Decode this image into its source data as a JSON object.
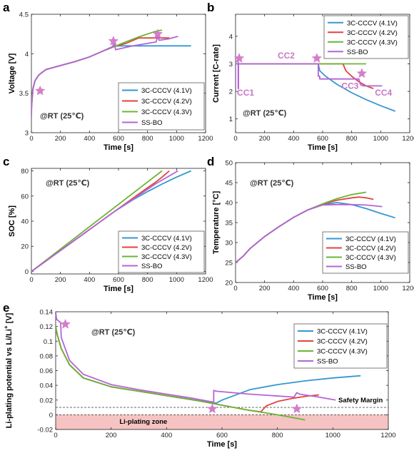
{
  "colors": {
    "blue": "#3497d3",
    "red": "#e2433f",
    "green": "#6bb535",
    "purple": "#b564d6",
    "star": "#d47ecb",
    "zone": "#f6c3c3",
    "cc_label": "#c678c8"
  },
  "legend_entries": [
    "3C-CCCV (4.1V)",
    "3C-CCCV (4.2V)",
    "3C-CCCV (4.3V)",
    "SS-BO"
  ],
  "chart_data": [
    {
      "panel": "a",
      "type": "line",
      "xlabel": "Time [s]",
      "ylabel": "Voltage [V]",
      "xlim": [
        0,
        1200
      ],
      "ylim": [
        3,
        4.5
      ],
      "xticks": [
        0,
        200,
        400,
        600,
        800,
        1000,
        1200
      ],
      "yticks": [
        3,
        3.5,
        4,
        4.5
      ],
      "ytick_labels": [
        "3",
        "3.5",
        "4",
        "4.5"
      ],
      "annotation": "@RT (25℃)",
      "legend": "bottom-right",
      "series": [
        {
          "name": "3C-CCCV (4.1V)",
          "color": "blue",
          "x": [
            0,
            10,
            25,
            50,
            100,
            200,
            300,
            400,
            500,
            570,
            700,
            900,
            1100
          ],
          "y": [
            3.3,
            3.55,
            3.66,
            3.73,
            3.8,
            3.85,
            3.9,
            3.96,
            4.04,
            4.1,
            4.1,
            4.1,
            4.1
          ]
        },
        {
          "name": "3C-CCCV (4.2V)",
          "color": "red",
          "x": [
            0,
            10,
            25,
            50,
            100,
            200,
            300,
            400,
            500,
            570,
            650,
            740,
            800,
            950
          ],
          "y": [
            3.3,
            3.55,
            3.66,
            3.73,
            3.8,
            3.85,
            3.9,
            3.96,
            4.04,
            4.09,
            4.13,
            4.2,
            4.2,
            4.2
          ]
        },
        {
          "name": "3C-CCCV (4.3V)",
          "color": "green",
          "x": [
            0,
            10,
            25,
            50,
            100,
            200,
            300,
            400,
            500,
            570,
            650,
            750,
            850,
            900
          ],
          "y": [
            3.3,
            3.55,
            3.66,
            3.73,
            3.8,
            3.85,
            3.9,
            3.96,
            4.04,
            4.09,
            4.15,
            4.22,
            4.28,
            4.3
          ]
        },
        {
          "name": "SS-BO",
          "color": "purple",
          "x": [
            0,
            2,
            10,
            25,
            50,
            100,
            200,
            300,
            400,
            500,
            560,
            570,
            580,
            600,
            700,
            860,
            870,
            880,
            950,
            1010
          ],
          "y": [
            3.2,
            3.38,
            3.55,
            3.66,
            3.73,
            3.8,
            3.85,
            3.9,
            3.96,
            4.04,
            4.09,
            4.16,
            4.05,
            4.06,
            4.1,
            4.15,
            4.23,
            4.17,
            4.19,
            4.22
          ]
        }
      ],
      "stars": [
        {
          "x": 60,
          "y": 3.53
        },
        {
          "x": 565,
          "y": 4.16
        },
        {
          "x": 870,
          "y": 4.25
        }
      ]
    },
    {
      "panel": "b",
      "type": "line",
      "xlabel": "Time [s]",
      "ylabel": "Current [C-rate]",
      "xlim": [
        0,
        1200
      ],
      "ylim": [
        0.5,
        4.8
      ],
      "xticks": [
        0,
        200,
        400,
        600,
        800,
        1000,
        1200
      ],
      "yticks": [
        1,
        2,
        3,
        4
      ],
      "ytick_labels": [
        "1",
        "2",
        "3",
        "4"
      ],
      "annotation": "@RT (25℃)",
      "legend": "top-right",
      "series": [
        {
          "name": "3C-CCCV (4.1V)",
          "color": "blue",
          "x": [
            0,
            570,
            580,
            620,
            700,
            800,
            900,
            1000,
            1100
          ],
          "y": [
            3,
            3,
            2.75,
            2.55,
            2.25,
            1.95,
            1.7,
            1.48,
            1.28
          ]
        },
        {
          "name": "3C-CCCV (4.2V)",
          "color": "red",
          "x": [
            0,
            740,
            760,
            800,
            850,
            900,
            950
          ],
          "y": [
            3,
            3,
            2.75,
            2.55,
            2.35,
            2.2,
            2.1
          ]
        },
        {
          "name": "3C-CCCV (4.3V)",
          "color": "green",
          "x": [
            0,
            900
          ],
          "y": [
            3,
            3
          ]
        },
        {
          "name": "SS-BO",
          "color": "purple",
          "x": [
            0,
            0,
            18,
            18,
            20,
            20,
            570,
            570,
            580,
            580,
            850,
            860,
            880,
            1010
          ],
          "y": [
            2,
            3.1,
            3.1,
            2.1,
            2.1,
            3,
            3,
            2.55,
            2.55,
            2.45,
            2.45,
            2.25,
            2.2,
            2.2
          ]
        }
      ],
      "stars": [
        {
          "x": 25,
          "y": 3.2
        },
        {
          "x": 560,
          "y": 3.2
        },
        {
          "x": 870,
          "y": 2.65
        }
      ],
      "labels": [
        {
          "text": "CC1",
          "x": 10,
          "y": 1.95
        },
        {
          "text": "CC2",
          "x": 290,
          "y": 3.3
        },
        {
          "text": "CC3",
          "x": 730,
          "y": 2.2
        },
        {
          "text": "CC4",
          "x": 960,
          "y": 1.95
        }
      ]
    },
    {
      "panel": "c",
      "type": "line",
      "xlabel": "Time [s]",
      "ylabel": "SOC [%]",
      "xlim": [
        0,
        1200
      ],
      "ylim": [
        -2,
        82
      ],
      "xticks": [
        0,
        200,
        400,
        600,
        800,
        1000,
        1200
      ],
      "yticks": [
        0,
        20,
        40,
        60,
        80
      ],
      "ytick_labels": [
        "0",
        "20",
        "40",
        "60",
        "80"
      ],
      "annotation": "@RT (25℃)",
      "legend": "bottom-right",
      "series": [
        {
          "name": "3C-CCCV (4.1V)",
          "color": "blue",
          "x": [
            0,
            570,
            700,
            800,
            900,
            1000,
            1100
          ],
          "y": [
            0,
            47.5,
            57,
            63.5,
            69.5,
            75,
            80
          ]
        },
        {
          "name": "3C-CCCV (4.2V)",
          "color": "red",
          "x": [
            0,
            740,
            800,
            850,
            900,
            950
          ],
          "y": [
            0,
            61.7,
            66.5,
            70.5,
            75,
            80
          ]
        },
        {
          "name": "3C-CCCV (4.3V)",
          "color": "green",
          "x": [
            0,
            900
          ],
          "y": [
            0,
            80
          ]
        },
        {
          "name": "SS-BO",
          "color": "purple",
          "x": [
            0,
            570,
            700,
            860,
            950,
            1010
          ],
          "y": [
            0,
            47.5,
            57.5,
            70,
            76,
            80
          ]
        }
      ]
    },
    {
      "panel": "d",
      "type": "line",
      "xlabel": "Time [s]",
      "ylabel": "Temperature [°C]",
      "xlim": [
        0,
        1200
      ],
      "ylim": [
        20,
        50
      ],
      "xticks": [
        0,
        200,
        400,
        600,
        800,
        1000,
        1200
      ],
      "yticks": [
        20,
        25,
        30,
        35,
        40,
        45,
        50
      ],
      "ytick_labels": [
        "20",
        "25",
        "30",
        "35",
        "40",
        "45",
        "50"
      ],
      "annotation": "@RT (25℃)",
      "legend": "bottom-right",
      "series": [
        {
          "name": "3C-CCCV (4.1V)",
          "color": "blue",
          "x": [
            0,
            50,
            100,
            200,
            300,
            400,
            500,
            600,
            700,
            800,
            900,
            1000,
            1100
          ],
          "y": [
            25,
            26.5,
            28.5,
            31.5,
            34,
            36.3,
            38.2,
            39.5,
            40,
            39.5,
            38.5,
            37.3,
            36.2
          ]
        },
        {
          "name": "3C-CCCV (4.2V)",
          "color": "red",
          "x": [
            0,
            50,
            100,
            200,
            300,
            400,
            500,
            600,
            700,
            800,
            850,
            900,
            950
          ],
          "y": [
            25,
            26.5,
            28.5,
            31.5,
            34,
            36.3,
            38.2,
            39.6,
            40.6,
            41.2,
            41.4,
            41.2,
            40.8
          ]
        },
        {
          "name": "3C-CCCV (4.3V)",
          "color": "green",
          "x": [
            0,
            50,
            100,
            200,
            300,
            400,
            500,
            600,
            700,
            800,
            900
          ],
          "y": [
            25,
            26.5,
            28.5,
            31.5,
            34,
            36.3,
            38.2,
            39.7,
            41,
            42,
            42.6
          ]
        },
        {
          "name": "SS-BO",
          "color": "purple",
          "x": [
            0,
            50,
            100,
            200,
            300,
            400,
            500,
            600,
            700,
            800,
            900,
            1010
          ],
          "y": [
            25,
            26.5,
            28.5,
            31.5,
            34,
            36.3,
            38.2,
            39.4,
            39.5,
            39.5,
            39.4,
            39
          ]
        }
      ]
    },
    {
      "panel": "e",
      "type": "line",
      "xlabel": "Time [s]",
      "ylabel": "Li-plating potential vs Li/Li+ [V]",
      "xlim": [
        0,
        1200
      ],
      "ylim": [
        -0.02,
        0.14
      ],
      "xticks": [
        0,
        200,
        400,
        600,
        800,
        1000,
        1200
      ],
      "yticks": [
        -0.02,
        0,
        0.02,
        0.04,
        0.06,
        0.08,
        0.1,
        0.12,
        0.14
      ],
      "ytick_labels": [
        "-0.02",
        "0",
        "0.02",
        "0.04",
        "0.06",
        "0.08",
        "0.1",
        "0.12",
        "0.14"
      ],
      "annotation": "@RT (25℃)",
      "legend": "top-right",
      "safety_margin_y": 0.01,
      "safety_margin_label": "Safety Margin",
      "zone_label": "Li-plating zone",
      "series": [
        {
          "name": "3C-CCCV (4.1V)",
          "color": "blue",
          "x": [
            0,
            5,
            20,
            50,
            100,
            200,
            300,
            400,
            500,
            570,
            580,
            600,
            700,
            800,
            900,
            1000,
            1100
          ],
          "y": [
            0.12,
            0.11,
            0.09,
            0.068,
            0.05,
            0.038,
            0.032,
            0.026,
            0.02,
            0.016,
            0.016,
            0.02,
            0.034,
            0.041,
            0.046,
            0.05,
            0.053
          ]
        },
        {
          "name": "3C-CCCV (4.2V)",
          "color": "red",
          "x": [
            0,
            5,
            20,
            50,
            100,
            200,
            300,
            400,
            500,
            600,
            700,
            740,
            760,
            800,
            850,
            900,
            950
          ],
          "y": [
            0.12,
            0.11,
            0.09,
            0.068,
            0.05,
            0.038,
            0.032,
            0.026,
            0.02,
            0.013,
            0.006,
            0.004,
            0.012,
            0.018,
            0.022,
            0.025,
            0.027
          ]
        },
        {
          "name": "3C-CCCV (4.3V)",
          "color": "green",
          "x": [
            0,
            5,
            20,
            50,
            100,
            200,
            300,
            400,
            500,
            600,
            700,
            800,
            900
          ],
          "y": [
            0.12,
            0.11,
            0.09,
            0.068,
            0.05,
            0.038,
            0.032,
            0.026,
            0.02,
            0.013,
            0.006,
            0.0,
            -0.007
          ]
        },
        {
          "name": "SS-BO",
          "color": "purple",
          "x": [
            0,
            3,
            18,
            20,
            25,
            50,
            100,
            200,
            300,
            400,
            500,
            570,
            570,
            580,
            700,
            860,
            870,
            880,
            950,
            1010
          ],
          "y": [
            0.14,
            0.13,
            0.125,
            0.105,
            0.1,
            0.074,
            0.055,
            0.041,
            0.034,
            0.028,
            0.022,
            0.017,
            0.033,
            0.032,
            0.028,
            0.024,
            0.03,
            0.028,
            0.024,
            0.02
          ]
        }
      ],
      "stars": [
        {
          "x": 35,
          "y": 0.123
        },
        {
          "x": 565,
          "y": 0.008
        },
        {
          "x": 870,
          "y": 0.008
        }
      ]
    }
  ]
}
